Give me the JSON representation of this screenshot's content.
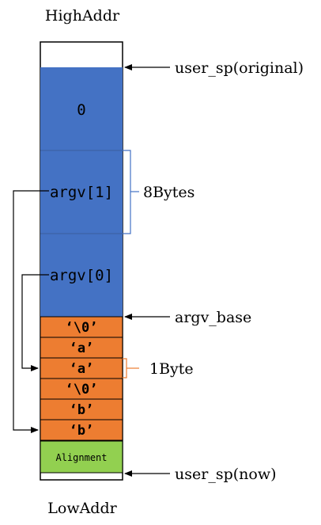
{
  "labels": {
    "high_addr": "HighAddr",
    "low_addr": "LowAddr",
    "user_sp_original": "user_sp(original)",
    "argv_base": "argv_base",
    "user_sp_now": "user_sp(now)",
    "eight_bytes": "8Bytes",
    "one_byte": "1Byte"
  },
  "stack": {
    "pointer_cells": [
      "0",
      "argv[1]",
      "argv[0]"
    ],
    "byte_cells": [
      "‘\\0’",
      "‘a’",
      "‘a’",
      "‘\\0’",
      "‘b’",
      "‘b’"
    ],
    "alignment": "Alignment"
  },
  "colors": {
    "pointer_fill": "#4472C4",
    "byte_fill": "#ED7D31",
    "alignment_fill": "#92D050",
    "bracket_blue": "#4472C4",
    "bracket_orange": "#ED7D31",
    "outline": "#000000"
  }
}
